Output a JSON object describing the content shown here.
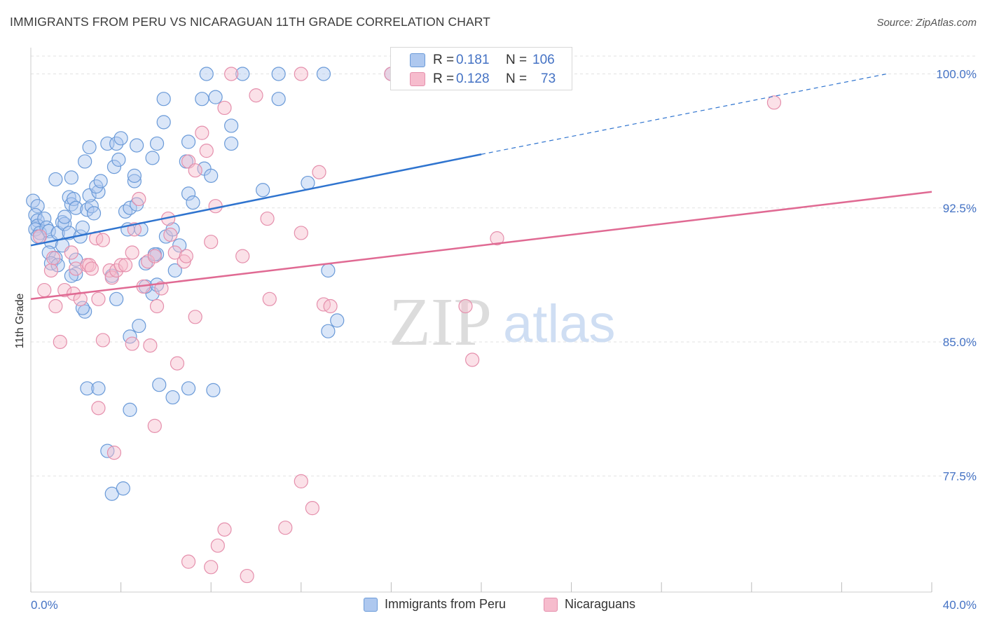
{
  "header": {
    "title": "IMMIGRANTS FROM PERU VS NICARAGUAN 11TH GRADE CORRELATION CHART",
    "source": "Source: ZipAtlas.com"
  },
  "watermark": {
    "zip": "ZIP",
    "atlas": "atlas"
  },
  "colors": {
    "blue_fill": "#aec8ef",
    "blue_stroke": "#6a9ad8",
    "blue_line": "#2f74cf",
    "pink_fill": "#f6bccd",
    "pink_stroke": "#e58fac",
    "pink_line": "#e06a93",
    "tick_text": "#4472c4",
    "grid": "#e2e2e2"
  },
  "stats": {
    "rows": [
      {
        "r_label": "R =",
        "r_value": "0.181",
        "n_label": "N =",
        "n_value": "106"
      },
      {
        "r_label": "R =",
        "r_value": "0.128",
        "n_label": "N =",
        "n_value": "73"
      }
    ]
  },
  "legend": {
    "items": [
      "Immigrants from Peru",
      "Nicaraguans"
    ]
  },
  "chart_data": {
    "type": "scatter",
    "title": "IMMIGRANTS FROM PERU VS NICARAGUAN 11TH GRADE CORRELATION CHART",
    "xlabel": "",
    "ylabel": "11th Grade",
    "xlim": [
      0,
      40
    ],
    "ylim": [
      71.0,
      101.0
    ],
    "x_tick_labels": [
      "0.0%",
      "40.0%"
    ],
    "y_ticks": [
      77.5,
      85.0,
      92.5,
      100.0
    ],
    "y_tick_labels": [
      "77.5%",
      "85.0%",
      "92.5%",
      "100.0%"
    ],
    "grid": "horizontal dashed",
    "legend_position": "bottom",
    "series": [
      {
        "name": "Immigrants from Peru",
        "r": 0.181,
        "n": 106,
        "trend": {
          "x": [
            0.0,
            20.0,
            38.0
          ],
          "y": [
            90.4,
            95.5,
            100.0
          ],
          "solid_until_x": 20.0
        },
        "points": [
          [
            0.1,
            92.9
          ],
          [
            0.3,
            92.6
          ],
          [
            0.2,
            92.1
          ],
          [
            0.3,
            91.8
          ],
          [
            0.3,
            91.5
          ],
          [
            0.2,
            91.3
          ],
          [
            0.4,
            91.1
          ],
          [
            0.3,
            90.9
          ],
          [
            0.6,
            91.9
          ],
          [
            0.7,
            91.4
          ],
          [
            0.8,
            91.2
          ],
          [
            0.9,
            90.6
          ],
          [
            0.8,
            90.0
          ],
          [
            1.1,
            89.7
          ],
          [
            0.9,
            89.4
          ],
          [
            1.2,
            91.1
          ],
          [
            1.4,
            91.7
          ],
          [
            1.5,
            91.6
          ],
          [
            1.5,
            92.0
          ],
          [
            1.7,
            93.1
          ],
          [
            1.8,
            92.7
          ],
          [
            1.9,
            93.0
          ],
          [
            2.0,
            92.5
          ],
          [
            1.7,
            91.1
          ],
          [
            2.2,
            90.9
          ],
          [
            2.0,
            89.6
          ],
          [
            2.0,
            88.8
          ],
          [
            1.8,
            88.7
          ],
          [
            1.4,
            90.4
          ],
          [
            1.2,
            89.3
          ],
          [
            2.3,
            91.4
          ],
          [
            2.5,
            92.4
          ],
          [
            2.7,
            92.6
          ],
          [
            2.6,
            93.2
          ],
          [
            2.8,
            92.2
          ],
          [
            3.0,
            93.4
          ],
          [
            2.9,
            93.7
          ],
          [
            3.1,
            94.0
          ],
          [
            2.4,
            95.1
          ],
          [
            2.6,
            95.9
          ],
          [
            1.1,
            94.1
          ],
          [
            1.8,
            94.2
          ],
          [
            3.4,
            96.1
          ],
          [
            3.8,
            96.1
          ],
          [
            4.0,
            96.4
          ],
          [
            4.7,
            96.0
          ],
          [
            3.7,
            94.8
          ],
          [
            3.9,
            95.2
          ],
          [
            4.2,
            92.3
          ],
          [
            4.4,
            92.5
          ],
          [
            4.6,
            94.0
          ],
          [
            4.6,
            94.3
          ],
          [
            4.7,
            92.7
          ],
          [
            4.9,
            91.3
          ],
          [
            5.4,
            95.3
          ],
          [
            5.6,
            96.1
          ],
          [
            5.9,
            97.3
          ],
          [
            5.9,
            98.6
          ],
          [
            5.6,
            89.9
          ],
          [
            5.1,
            89.4
          ],
          [
            5.5,
            89.9
          ],
          [
            6.0,
            90.9
          ],
          [
            6.3,
            91.3
          ],
          [
            6.6,
            90.4
          ],
          [
            6.4,
            89.0
          ],
          [
            7.0,
            93.3
          ],
          [
            7.2,
            92.8
          ],
          [
            6.9,
            95.1
          ],
          [
            7.0,
            96.2
          ],
          [
            7.6,
            98.6
          ],
          [
            7.7,
            94.7
          ],
          [
            8.0,
            94.3
          ],
          [
            7.8,
            100.0
          ],
          [
            8.2,
            98.7
          ],
          [
            8.9,
            97.1
          ],
          [
            8.9,
            96.1
          ],
          [
            9.4,
            100.0
          ],
          [
            11.0,
            98.6
          ],
          [
            10.3,
            93.5
          ],
          [
            12.3,
            93.9
          ],
          [
            13.2,
            89.0
          ],
          [
            13.6,
            86.2
          ],
          [
            13.2,
            85.6
          ],
          [
            4.8,
            85.9
          ],
          [
            4.4,
            85.3
          ],
          [
            5.4,
            87.7
          ],
          [
            5.1,
            88.1
          ],
          [
            5.6,
            88.2
          ],
          [
            3.6,
            88.7
          ],
          [
            3.8,
            87.4
          ],
          [
            2.4,
            86.7
          ],
          [
            2.3,
            86.9
          ],
          [
            2.5,
            82.4
          ],
          [
            3.0,
            82.4
          ],
          [
            4.4,
            81.2
          ],
          [
            5.7,
            82.6
          ],
          [
            6.3,
            81.9
          ],
          [
            7.0,
            82.4
          ],
          [
            8.1,
            82.3
          ],
          [
            3.4,
            78.9
          ],
          [
            3.6,
            76.5
          ],
          [
            4.1,
            76.8
          ],
          [
            16.0,
            100.0
          ],
          [
            11.0,
            100.0
          ],
          [
            13.0,
            100.0
          ],
          [
            4.3,
            91.3
          ]
        ]
      },
      {
        "name": "Nicaraguans",
        "r": 0.128,
        "n": 73,
        "trend": {
          "x": [
            0.0,
            40.0
          ],
          "y": [
            87.4,
            93.4
          ]
        },
        "points": [
          [
            0.4,
            90.9
          ],
          [
            0.6,
            87.9
          ],
          [
            0.9,
            89.0
          ],
          [
            1.0,
            89.7
          ],
          [
            1.1,
            87.0
          ],
          [
            1.3,
            85.0
          ],
          [
            1.5,
            87.9
          ],
          [
            1.8,
            90.0
          ],
          [
            2.0,
            89.1
          ],
          [
            1.9,
            87.7
          ],
          [
            2.2,
            87.4
          ],
          [
            2.5,
            89.3
          ],
          [
            2.6,
            89.3
          ],
          [
            2.7,
            89.1
          ],
          [
            2.9,
            90.8
          ],
          [
            3.2,
            90.7
          ],
          [
            3.0,
            87.4
          ],
          [
            3.2,
            85.1
          ],
          [
            3.5,
            89.0
          ],
          [
            3.6,
            88.6
          ],
          [
            3.8,
            89.0
          ],
          [
            4.0,
            89.3
          ],
          [
            4.2,
            89.3
          ],
          [
            4.5,
            90.0
          ],
          [
            4.6,
            91.3
          ],
          [
            4.8,
            93.0
          ],
          [
            5.0,
            88.1
          ],
          [
            5.2,
            89.5
          ],
          [
            5.5,
            89.8
          ],
          [
            5.6,
            87.0
          ],
          [
            5.8,
            88.0
          ],
          [
            6.1,
            91.9
          ],
          [
            6.2,
            91.0
          ],
          [
            6.4,
            90.0
          ],
          [
            6.8,
            89.5
          ],
          [
            6.9,
            89.8
          ],
          [
            7.0,
            95.1
          ],
          [
            7.3,
            94.6
          ],
          [
            7.6,
            96.7
          ],
          [
            7.8,
            95.7
          ],
          [
            8.0,
            90.6
          ],
          [
            8.2,
            92.6
          ],
          [
            8.6,
            98.1
          ],
          [
            8.9,
            100.0
          ],
          [
            9.4,
            89.8
          ],
          [
            10.5,
            91.9
          ],
          [
            10.6,
            87.4
          ],
          [
            10.0,
            98.8
          ],
          [
            12.0,
            100.0
          ],
          [
            12.8,
            94.5
          ],
          [
            12.0,
            91.1
          ],
          [
            13.0,
            87.1
          ],
          [
            13.3,
            87.0
          ],
          [
            16.0,
            100.0
          ],
          [
            19.3,
            87.0
          ],
          [
            20.7,
            90.8
          ],
          [
            19.6,
            84.0
          ],
          [
            33.0,
            98.4
          ],
          [
            3.0,
            81.3
          ],
          [
            3.7,
            78.8
          ],
          [
            5.5,
            80.3
          ],
          [
            5.3,
            84.8
          ],
          [
            6.5,
            83.8
          ],
          [
            7.3,
            86.4
          ],
          [
            8.0,
            72.4
          ],
          [
            7.0,
            72.7
          ],
          [
            8.3,
            73.6
          ],
          [
            8.6,
            74.5
          ],
          [
            9.6,
            71.9
          ],
          [
            11.3,
            74.6
          ],
          [
            12.0,
            77.2
          ],
          [
            12.5,
            75.7
          ],
          [
            4.5,
            84.9
          ]
        ]
      }
    ]
  }
}
